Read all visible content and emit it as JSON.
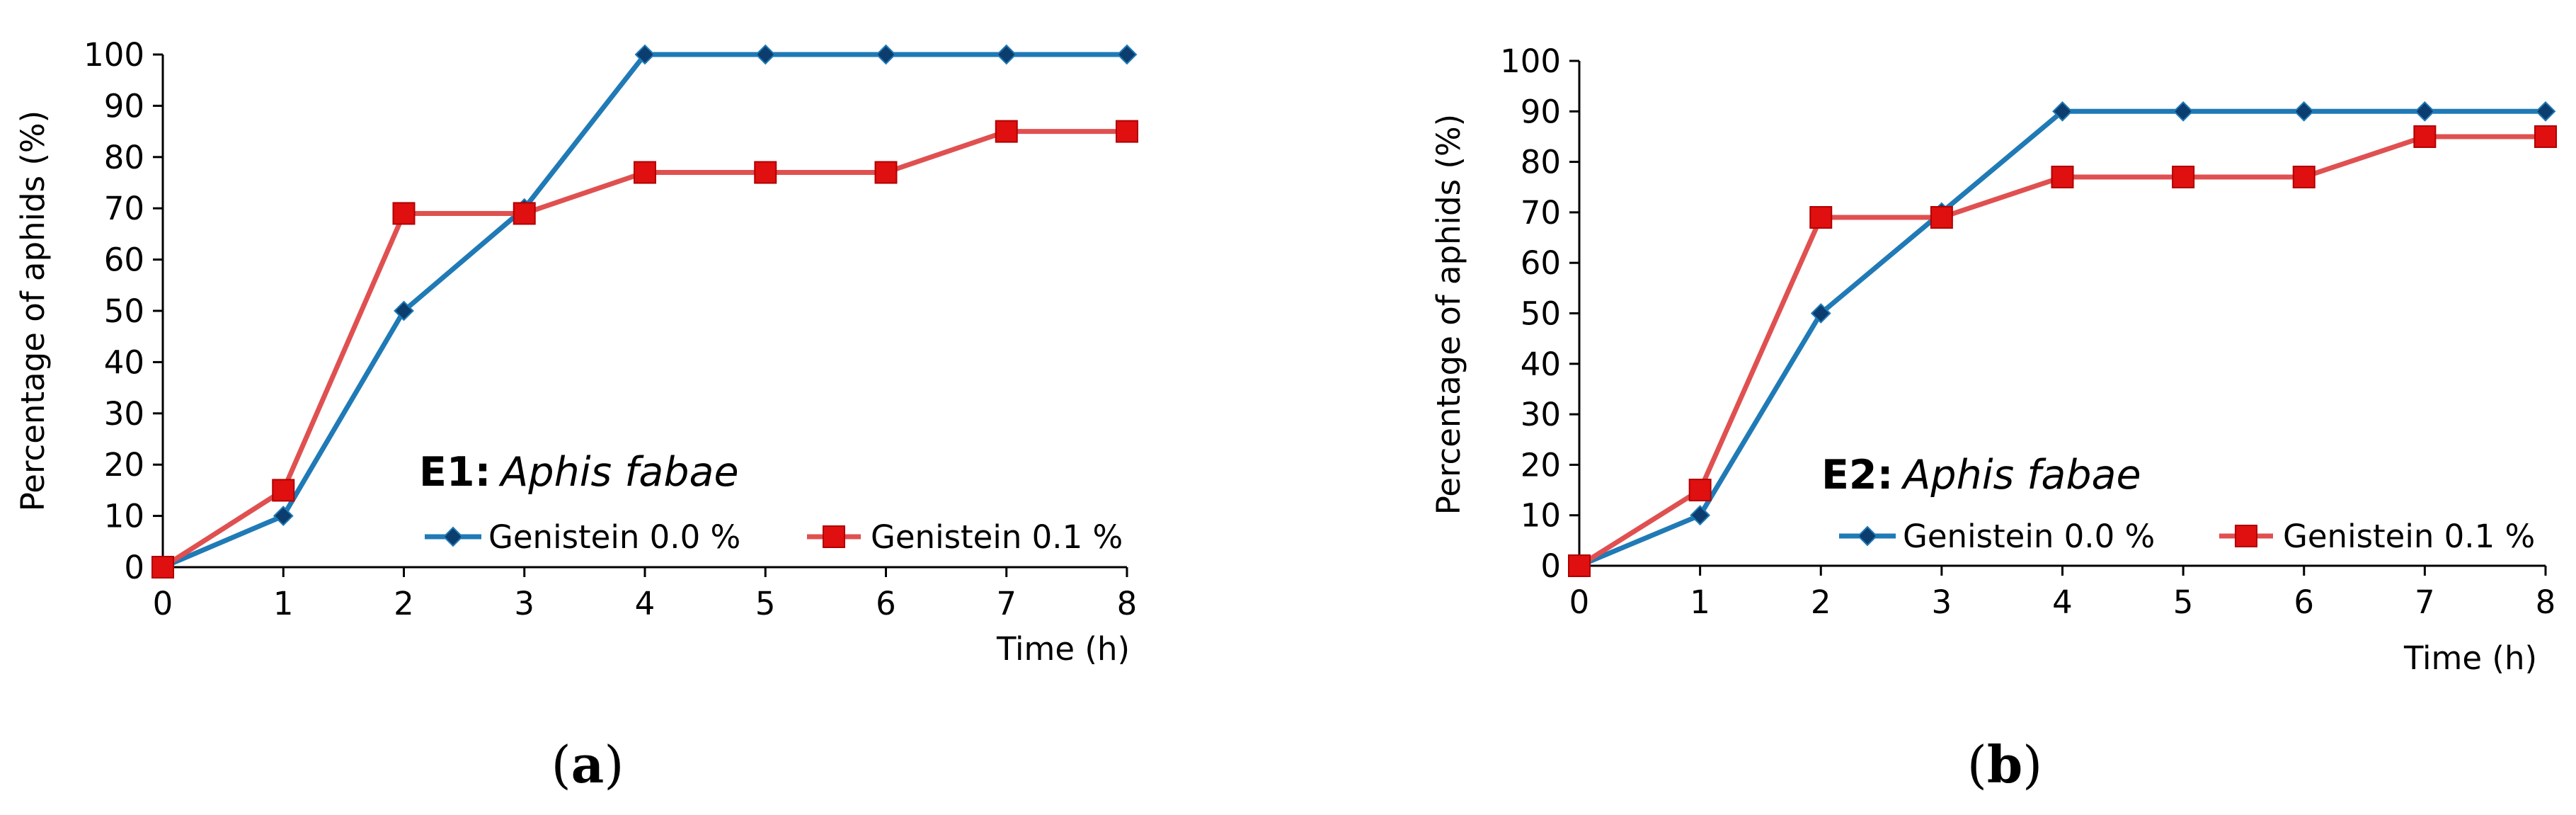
{
  "chart_data": [
    {
      "type": "line",
      "panel": "a",
      "caption_label": "a",
      "annotation_bold": "E1:",
      "annotation_italic": "Aphis fabae",
      "xlabel": "Time (h)",
      "ylabel": "Percentage of aphids (%)",
      "x": [
        0,
        1,
        2,
        3,
        4,
        5,
        6,
        7,
        8
      ],
      "xlim": [
        0,
        8
      ],
      "ylim": [
        0,
        100
      ],
      "yticks": [
        0,
        10,
        20,
        30,
        40,
        50,
        60,
        70,
        80,
        90,
        100
      ],
      "series": [
        {
          "name": "Genistein 0.0 %",
          "color": "#1f7ab6",
          "marker": "diamond",
          "marker_color": "#0b3d6e",
          "values": [
            0,
            10,
            50,
            70,
            100,
            100,
            100,
            100,
            100
          ]
        },
        {
          "name": "Genistein 0.1 %",
          "color": "#e05050",
          "marker": "square",
          "marker_color": "#e01010",
          "values": [
            0,
            15,
            69,
            69,
            77,
            77,
            77,
            85,
            85
          ]
        }
      ],
      "legend_position": "bottom"
    },
    {
      "type": "line",
      "panel": "b",
      "caption_label": "b",
      "annotation_bold": "E2:",
      "annotation_italic": "Aphis fabae",
      "xlabel": "Time (h)",
      "ylabel": "Percentage of aphids (%)",
      "x": [
        0,
        1,
        2,
        3,
        4,
        5,
        6,
        7,
        8
      ],
      "xlim": [
        0,
        8
      ],
      "ylim": [
        0,
        100
      ],
      "yticks": [
        0,
        10,
        20,
        30,
        40,
        50,
        60,
        70,
        80,
        90,
        100
      ],
      "series": [
        {
          "name": "Genistein 0.0 %",
          "color": "#1f7ab6",
          "marker": "diamond",
          "marker_color": "#0b3d6e",
          "values": [
            0,
            10,
            50,
            70,
            90,
            90,
            90,
            90,
            90
          ]
        },
        {
          "name": "Genistein 0.1 %",
          "color": "#e05050",
          "marker": "square",
          "marker_color": "#e01010",
          "values": [
            0,
            15,
            69,
            69,
            77,
            77,
            77,
            85,
            85
          ]
        }
      ],
      "legend_position": "bottom"
    }
  ]
}
